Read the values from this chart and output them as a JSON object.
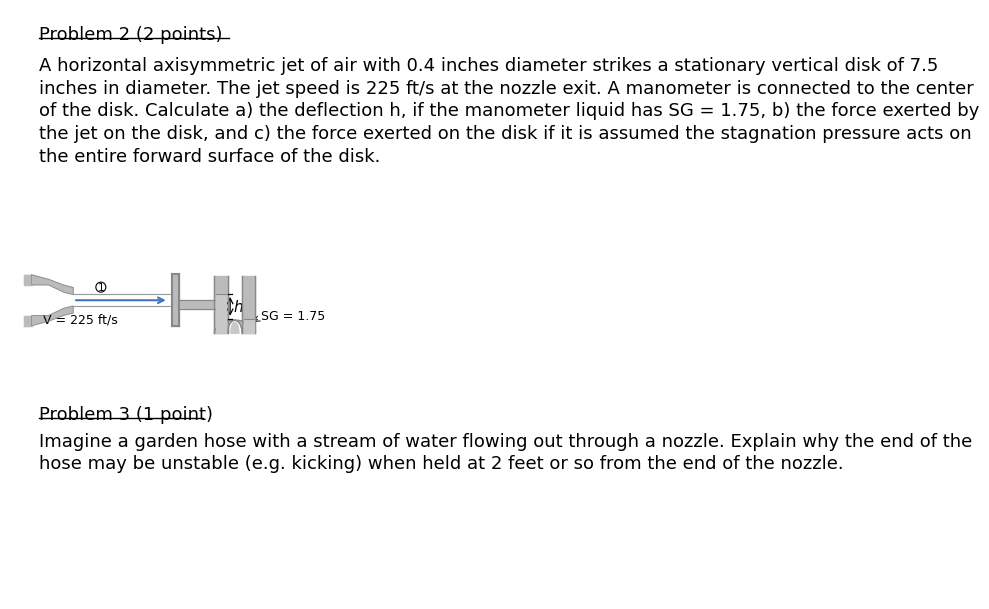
{
  "title1": "Problem 2 (2 points)",
  "body1_lines": [
    "A horizontal axisymmetric jet of air with 0.4 inches diameter strikes a stationary vertical disk of 7.5",
    "inches in diameter. The jet speed is 225 ft/s at the nozzle exit. A manometer is connected to the center",
    "of the disk. Calculate a) the deflection h, if the manometer liquid has SG = 1.75, b) the force exerted by",
    "the jet on the disk, and c) the force exerted on the disk if it is assumed the stagnation pressure acts on",
    "the entire forward surface of the disk."
  ],
  "title2": "Problem 3 (1 point)",
  "body2_lines": [
    "Imagine a garden hose with a stream of water flowing out through a nozzle. Explain why the end of the",
    "hose may be unstable (e.g. kicking) when held at 2 feet or so from the end of the nozzle."
  ],
  "label_V": "V = 225 ft/s",
  "label_SG": "SG = 1.75",
  "label_h": "h",
  "label_1": "1",
  "arrow_color": "#4472c4",
  "dgray": "#888888",
  "lgray": "#bbbbbb",
  "mgray": "#999999",
  "fluid_color": "#c8c8c8",
  "background": "#ffffff",
  "text_color": "#000000",
  "title_fontsize": 13,
  "body_fontsize": 13
}
